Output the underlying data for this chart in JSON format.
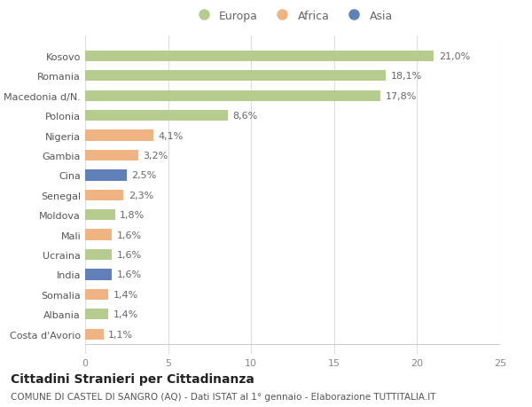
{
  "categories": [
    "Kosovo",
    "Romania",
    "Macedonia d/N.",
    "Polonia",
    "Nigeria",
    "Gambia",
    "Cina",
    "Senegal",
    "Moldova",
    "Mali",
    "Ucraina",
    "India",
    "Somalia",
    "Albania",
    "Costa d'Avorio"
  ],
  "values": [
    21.0,
    18.1,
    17.8,
    8.6,
    4.1,
    3.2,
    2.5,
    2.3,
    1.8,
    1.6,
    1.6,
    1.6,
    1.4,
    1.4,
    1.1
  ],
  "labels": [
    "21,0%",
    "18,1%",
    "17,8%",
    "8,6%",
    "4,1%",
    "3,2%",
    "2,5%",
    "2,3%",
    "1,8%",
    "1,6%",
    "1,6%",
    "1,6%",
    "1,4%",
    "1,4%",
    "1,1%"
  ],
  "continent": [
    "Europa",
    "Europa",
    "Europa",
    "Europa",
    "Africa",
    "Africa",
    "Asia",
    "Africa",
    "Europa",
    "Africa",
    "Europa",
    "Asia",
    "Africa",
    "Europa",
    "Africa"
  ],
  "colors": {
    "Europa": "#b5cc8e",
    "Africa": "#f0b482",
    "Asia": "#6080b8"
  },
  "title": "Cittadini Stranieri per Cittadinanza",
  "subtitle": "COMUNE DI CASTEL DI SANGRO (AQ) - Dati ISTAT al 1° gennaio - Elaborazione TUTTITALIA.IT",
  "xlim": [
    0,
    25
  ],
  "xticks": [
    0,
    5,
    10,
    15,
    20,
    25
  ],
  "background_color": "#ffffff",
  "bar_height": 0.55,
  "label_fontsize": 8,
  "tick_fontsize": 8,
  "title_fontsize": 10,
  "subtitle_fontsize": 7.5
}
